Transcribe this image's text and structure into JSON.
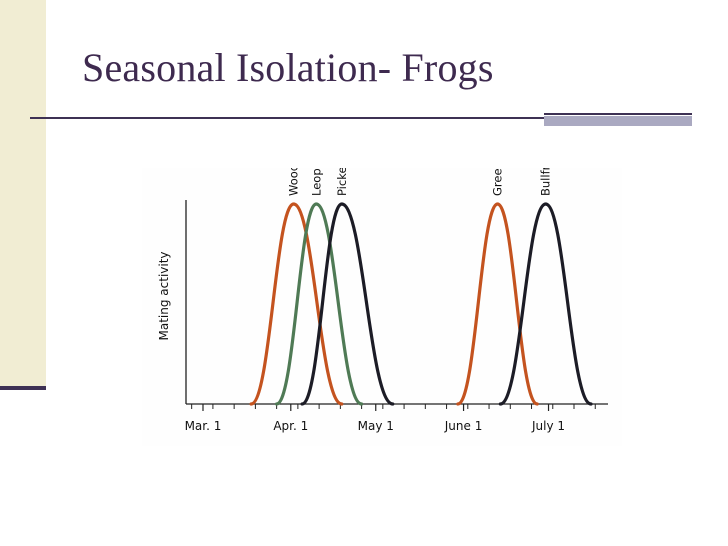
{
  "slide": {
    "title": "Seasonal Isolation- Frogs"
  },
  "chart_data": {
    "type": "line",
    "title": "",
    "xlabel": "",
    "ylabel": "Mating activity",
    "ylim": [
      0,
      1
    ],
    "grid": false,
    "legend": "none",
    "x_ticks": [
      {
        "label": "Mar. 1",
        "day": 0
      },
      {
        "label": "Apr. 1",
        "day": 31
      },
      {
        "label": "May 1",
        "day": 61
      },
      {
        "label": "June 1",
        "day": 92
      },
      {
        "label": "July 1",
        "day": 122
      }
    ],
    "xlim_days": [
      -6,
      143
    ],
    "series": [
      {
        "name": "Wood frog",
        "color": "#c4531f",
        "start_day": 17,
        "peak_day": 32,
        "end_day": 49,
        "peak": 1.0
      },
      {
        "name": "Leopard frog",
        "color": "#4f7a55",
        "start_day": 26,
        "peak_day": 40,
        "end_day": 56,
        "peak": 1.0
      },
      {
        "name": "Pickerel frog",
        "color": "#1c1c26",
        "start_day": 35,
        "peak_day": 49,
        "end_day": 67,
        "peak": 1.0
      },
      {
        "name": "Green frog",
        "color": "#c4531f",
        "start_day": 90,
        "peak_day": 104,
        "end_day": 118,
        "peak": 1.0
      },
      {
        "name": "Bullfrog",
        "color": "#1c1c26",
        "start_day": 105,
        "peak_day": 121,
        "end_day": 137,
        "peak": 1.0
      }
    ]
  }
}
